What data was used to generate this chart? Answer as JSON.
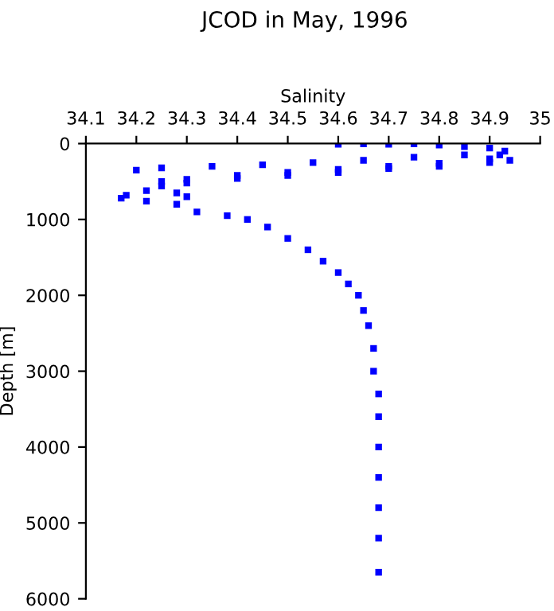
{
  "chart_data": {
    "type": "scatter",
    "title": "JCOD in May, 1996",
    "xlabel": "Salinity",
    "ylabel": "Depth [m]",
    "xlim": [
      34.1,
      35
    ],
    "xticks": [
      34.1,
      34.2,
      34.3,
      34.4,
      34.5,
      34.6,
      34.7,
      34.8,
      34.9,
      35
    ],
    "ylim": [
      6000,
      0
    ],
    "yticks": [
      0,
      1000,
      2000,
      3000,
      4000,
      5000,
      6000
    ],
    "marker": "square",
    "grid": false,
    "legend": false,
    "series": [
      {
        "color": "#0000ff",
        "x": [
          34.6,
          34.65,
          34.7,
          34.75,
          34.8,
          34.85,
          34.9,
          34.93,
          34.92,
          34.94,
          34.9,
          34.8,
          34.7,
          34.6,
          34.5,
          34.4,
          34.3,
          34.25,
          34.22,
          34.18,
          34.17,
          34.22,
          34.3,
          34.28,
          34.2,
          34.25,
          34.35,
          34.45,
          34.55,
          34.65,
          34.75,
          34.85,
          34.9,
          34.8,
          34.7,
          34.6,
          34.5,
          34.4,
          34.3,
          34.25,
          34.28,
          34.32,
          34.38,
          34.42,
          34.46,
          34.5,
          34.54,
          34.57,
          34.6,
          34.62,
          34.64,
          34.65,
          34.66,
          34.67,
          34.67,
          34.68,
          34.68,
          34.68,
          34.68,
          34.68,
          34.68,
          34.68
        ],
        "values": [
          10,
          5,
          10,
          5,
          20,
          40,
          60,
          100,
          150,
          220,
          250,
          300,
          330,
          380,
          420,
          460,
          520,
          560,
          620,
          680,
          720,
          760,
          700,
          650,
          350,
          320,
          300,
          280,
          250,
          220,
          180,
          150,
          200,
          260,
          300,
          340,
          380,
          420,
          470,
          500,
          800,
          900,
          950,
          1000,
          1100,
          1250,
          1400,
          1550,
          1700,
          1850,
          2000,
          2200,
          2400,
          2700,
          3000,
          3300,
          3600,
          4000,
          4400,
          4800,
          5200,
          5650
        ]
      }
    ]
  }
}
